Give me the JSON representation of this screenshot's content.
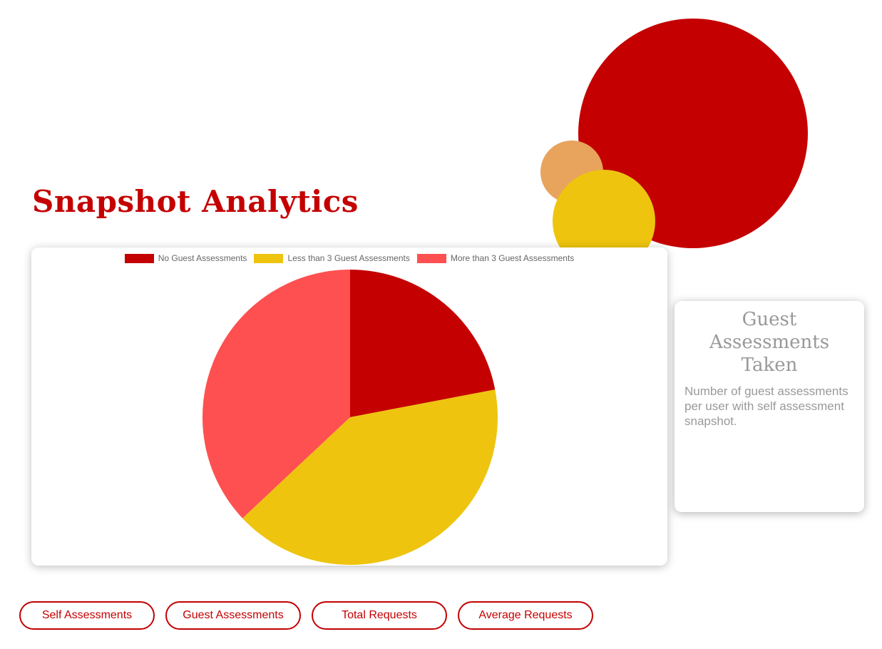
{
  "page": {
    "title": "Snapshot Analytics"
  },
  "colors": {
    "primary": "#c40000",
    "yellow": "#eec40f",
    "coral": "#fe5050",
    "orange": "#e8a35c"
  },
  "chart_data": {
    "type": "pie",
    "categories": [
      "No Guest Assessments",
      "Less than 3 Guest Assessments",
      "More than 3 Guest Assessments"
    ],
    "values": [
      22,
      41,
      37
    ],
    "colors": [
      "#c40000",
      "#eec40f",
      "#fe5050"
    ],
    "legend_position": "top"
  },
  "info_card": {
    "title": "Guest Assessments Taken",
    "description": "Number of guest assessments per user with self assessment snapshot."
  },
  "nav": {
    "buttons": [
      {
        "label": "Self Assessments"
      },
      {
        "label": "Guest Assessments"
      },
      {
        "label": "Total Requests"
      },
      {
        "label": "Average Requests"
      }
    ]
  }
}
